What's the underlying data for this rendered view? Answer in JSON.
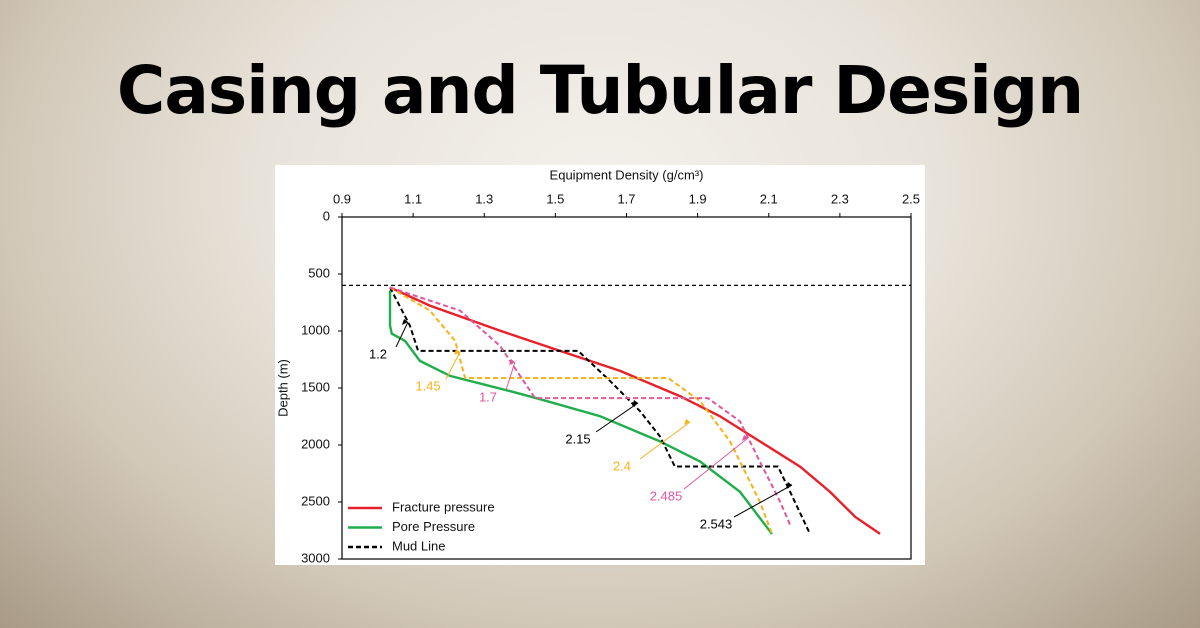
{
  "banner_title": "Casing and Tubular Design",
  "chart_data": {
    "type": "line",
    "x_label": "Equipment Density (g/cm³)",
    "y_label": "Depth (m)",
    "xlim": [
      0.9,
      2.5
    ],
    "xticks": [
      0.9,
      1.1,
      1.3,
      1.5,
      1.7,
      1.9,
      2.1,
      2.3,
      2.5
    ],
    "ylim": [
      0,
      3000
    ],
    "yticks": [
      0,
      500,
      1000,
      1500,
      2000,
      2500,
      3000
    ],
    "y_inverted": true,
    "x_axis_position": "top",
    "legend": "lower left",
    "horizontal_line": 600,
    "series": [
      {
        "name": "Fracture pressure",
        "color": "#e8202a",
        "dash": false,
        "x": [
          1.035,
          1.147,
          1.344,
          1.513,
          1.682,
          1.85,
          1.963,
          2.075,
          2.188,
          2.272,
          2.343,
          2.413
        ],
        "values": [
          618,
          777,
          997,
          1174,
          1350,
          1571,
          1748,
          1968,
          2189,
          2410,
          2630,
          2780
        ]
      },
      {
        "name": "Pore Pressure",
        "color": "#1fae4b",
        "dash": false,
        "x": [
          1.035,
          1.035,
          1.04,
          1.077,
          1.119,
          1.204,
          1.372,
          1.457,
          1.626,
          1.794,
          1.907,
          2.019,
          2.109
        ],
        "values": [
          644,
          953,
          1024,
          1086,
          1262,
          1394,
          1527,
          1598,
          1748,
          1968,
          2145,
          2410,
          2780
        ]
      },
      {
        "name": "Mud Line",
        "color": "#000000",
        "dash": true,
        "x": [
          1.035,
          1.091,
          1.114,
          1.564,
          1.654,
          1.738,
          1.794,
          1.836,
          2.126,
          2.16,
          2.216
        ],
        "values": [
          618,
          953,
          1174,
          1174,
          1439,
          1703,
          1924,
          2189,
          2189,
          2410,
          2780
        ]
      },
      {
        "color": "#f5b21b",
        "dash": true,
        "x": [
          1.035,
          1.147,
          1.218,
          1.246,
          1.817,
          1.907,
          1.991,
          2.075,
          2.109
        ],
        "values": [
          618,
          821,
          1086,
          1412,
          1412,
          1615,
          1968,
          2498,
          2780
        ]
      },
      {
        "color": "#e2579b",
        "dash": true,
        "x": [
          1.035,
          1.232,
          1.344,
          1.443,
          1.929,
          2.019,
          2.075,
          2.132,
          2.16
        ],
        "values": [
          618,
          821,
          1130,
          1589,
          1589,
          1792,
          2145,
          2498,
          2700
        ]
      }
    ],
    "annotations": [
      {
        "text": "1.2",
        "color": "#000000"
      },
      {
        "text": "1.45",
        "color": "#f5b21b"
      },
      {
        "text": "1.7",
        "color": "#e2579b"
      },
      {
        "text": "2.15",
        "color": "#000000"
      },
      {
        "text": "2.4",
        "color": "#f5b21b"
      },
      {
        "text": "2.485",
        "color": "#e2579b"
      },
      {
        "text": "2.543",
        "color": "#000000"
      }
    ]
  }
}
